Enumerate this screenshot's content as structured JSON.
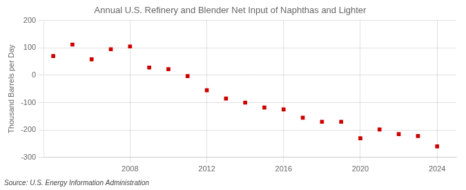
{
  "chart_data": {
    "type": "scatter",
    "title": "Annual U.S. Refinery and Blender Net Input of Naphthas and Lighter",
    "ylabel": "Thousand Barrels per Day",
    "annotation": "Source: U.S. Energy Information Administration",
    "x": [
      2004,
      2005,
      2006,
      2007,
      2008,
      2009,
      2010,
      2011,
      2012,
      2013,
      2014,
      2015,
      2016,
      2017,
      2018,
      2019,
      2020,
      2021,
      2022,
      2023,
      2024
    ],
    "values": [
      70,
      112,
      58,
      95,
      105,
      28,
      22,
      -3,
      -55,
      -85,
      -100,
      -118,
      -125,
      -155,
      -170,
      -170,
      -230,
      -198,
      -215,
      -222,
      -260
    ],
    "color": "#cc0000",
    "marker": "square",
    "xlim": [
      2003.5,
      2025
    ],
    "xticks": [
      2008,
      2012,
      2016,
      2020,
      2024
    ],
    "ylim": [
      -300,
      200
    ],
    "yticks": [
      -300,
      -200,
      -100,
      0,
      100,
      200
    ],
    "grid": true
  }
}
